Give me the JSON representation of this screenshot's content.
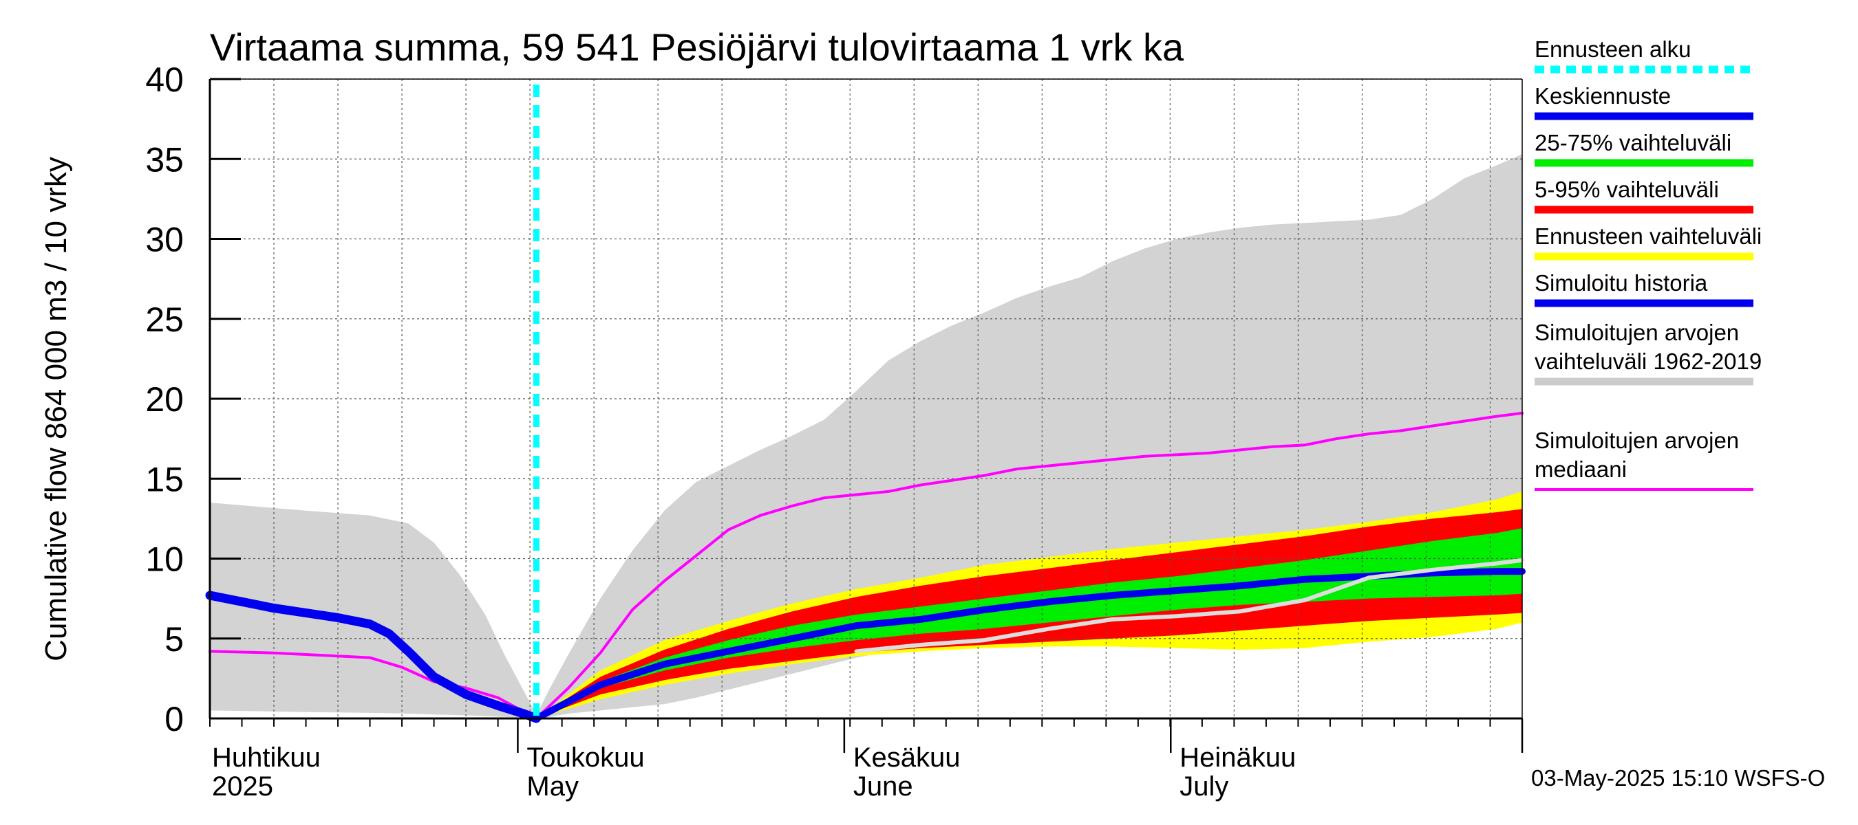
{
  "chart_data": {
    "type": "area",
    "title": "Virtaama summa, 59 541 Pesiöjärvi tulovirtaama 1 vrk ka",
    "ylabel": "Cumulative flow    864 000 m3 / 10 vrky",
    "ylim": [
      0,
      40
    ],
    "yticks": [
      0,
      5,
      10,
      15,
      20,
      25,
      30,
      35,
      40
    ],
    "xlim": [
      0,
      205
    ],
    "forecast_start_day": 51,
    "grid": true,
    "legend_position": "right",
    "month_labels": [
      {
        "day": 0,
        "fi": "Huhtikuu",
        "en": "2025"
      },
      {
        "day": 51,
        "fi": "Toukokuu",
        "en": "May"
      },
      {
        "day": 102,
        "fi": "Kesäkuu",
        "en": "June"
      },
      {
        "day": 153,
        "fi": "Heinäkuu",
        "en": "July"
      }
    ],
    "gray_band": {
      "name": "Simuloitujen arvojen vaihteluväli 1962-2019",
      "x": [
        0,
        15,
        25,
        31,
        35,
        39,
        43,
        46,
        48,
        50,
        51,
        53,
        56,
        61,
        66,
        71,
        76,
        81,
        86,
        91,
        96,
        101,
        106,
        111,
        116,
        121,
        126,
        131,
        136,
        141,
        146,
        151,
        156,
        161,
        166,
        171,
        176,
        181,
        186,
        191,
        196,
        201,
        205
      ],
      "upper": [
        13.5,
        13.0,
        12.7,
        12.2,
        11.0,
        9.0,
        6.5,
        4.0,
        2.5,
        1.0,
        0.2,
        1.8,
        4.0,
        7.5,
        10.5,
        13.0,
        14.8,
        15.8,
        16.8,
        17.7,
        18.7,
        20.5,
        22.4,
        23.6,
        24.6,
        25.4,
        26.3,
        27.0,
        27.6,
        28.6,
        29.4,
        30.0,
        30.4,
        30.7,
        30.9,
        31.0,
        31.1,
        31.2,
        31.5,
        32.5,
        33.8,
        34.6,
        35.3
      ],
      "lower": [
        0.5,
        0.4,
        0.35,
        0.3,
        0.25,
        0.2,
        0.15,
        0.1,
        0.08,
        0.05,
        0.0,
        0.1,
        0.3,
        0.5,
        0.7,
        0.9,
        1.3,
        1.8,
        2.3,
        2.8,
        3.3,
        3.8,
        4.2,
        4.5,
        4.7,
        4.9,
        5.0,
        5.2,
        5.4,
        5.6,
        5.7,
        5.8,
        5.9,
        6.0,
        6.2,
        6.6,
        7.0,
        7.5,
        8.0,
        8.3,
        8.6,
        9.0,
        9.3
      ]
    },
    "series": [
      {
        "name": "Ennusteen vaihteluväli",
        "kind": "band",
        "color": "#ffff00",
        "x": [
          51,
          61,
          71,
          81,
          91,
          101,
          111,
          121,
          131,
          141,
          151,
          161,
          171,
          181,
          191,
          201,
          205
        ],
        "upper": [
          0.0,
          3.0,
          4.9,
          6.1,
          7.2,
          8.1,
          8.8,
          9.6,
          10.1,
          10.6,
          11.0,
          11.4,
          11.8,
          12.3,
          12.9,
          13.7,
          14.2
        ],
        "lower": [
          0.0,
          1.2,
          2.1,
          2.8,
          3.4,
          3.9,
          4.2,
          4.4,
          4.5,
          4.5,
          4.4,
          4.3,
          4.4,
          4.8,
          5.1,
          5.6,
          6.0
        ]
      },
      {
        "name": "5-95% vaihteluväli",
        "kind": "band",
        "color": "#ff0000",
        "x": [
          51,
          61,
          71,
          81,
          91,
          101,
          111,
          121,
          131,
          141,
          151,
          161,
          171,
          181,
          191,
          201,
          205
        ],
        "upper": [
          0.0,
          2.6,
          4.3,
          5.6,
          6.7,
          7.6,
          8.3,
          8.9,
          9.4,
          9.9,
          10.4,
          10.9,
          11.4,
          12.0,
          12.5,
          12.9,
          13.1
        ],
        "lower": [
          0.0,
          1.5,
          2.4,
          3.1,
          3.6,
          4.1,
          4.4,
          4.6,
          4.8,
          5.0,
          5.2,
          5.5,
          5.8,
          6.1,
          6.3,
          6.5,
          6.6
        ]
      },
      {
        "name": "25-75% vaihteluväli",
        "kind": "band",
        "color": "#00ee00",
        "x": [
          51,
          61,
          71,
          81,
          91,
          101,
          111,
          121,
          131,
          141,
          151,
          161,
          171,
          181,
          191,
          201,
          205
        ],
        "upper": [
          0.0,
          2.3,
          3.8,
          4.9,
          5.8,
          6.5,
          7.0,
          7.5,
          8.0,
          8.5,
          8.9,
          9.4,
          9.9,
          10.5,
          11.1,
          11.6,
          11.9
        ],
        "lower": [
          0.0,
          1.9,
          3.0,
          3.8,
          4.4,
          4.9,
          5.3,
          5.6,
          6.0,
          6.4,
          6.8,
          7.1,
          7.3,
          7.5,
          7.6,
          7.7,
          7.8
        ]
      },
      {
        "name": "Simuloitujen arvojen mediaani",
        "kind": "line",
        "color": "#ff00ff",
        "x": [
          0,
          10,
          20,
          25,
          30,
          35,
          40,
          45,
          51,
          56,
          61,
          66,
          71,
          76,
          81,
          86,
          91,
          96,
          101,
          106,
          111,
          116,
          121,
          126,
          131,
          136,
          141,
          146,
          151,
          156,
          161,
          166,
          171,
          176,
          181,
          186,
          191,
          196,
          201,
          205
        ],
        "values": [
          4.2,
          4.1,
          3.9,
          3.8,
          3.2,
          2.3,
          1.9,
          1.3,
          0.0,
          1.9,
          4.1,
          6.8,
          8.6,
          10.2,
          11.8,
          12.7,
          13.3,
          13.8,
          14.0,
          14.2,
          14.6,
          14.9,
          15.2,
          15.6,
          15.8,
          16.0,
          16.2,
          16.4,
          16.5,
          16.6,
          16.8,
          17.0,
          17.1,
          17.5,
          17.8,
          18.0,
          18.3,
          18.6,
          18.9,
          19.1
        ]
      },
      {
        "name": "Simuloitu historia",
        "kind": "line",
        "color": "#0000ee",
        "x": [
          0,
          5,
          10,
          15,
          20,
          25,
          28,
          31,
          35,
          40,
          45,
          49,
          51
        ],
        "values": [
          7.7,
          7.3,
          6.9,
          6.6,
          6.3,
          5.9,
          5.3,
          4.2,
          2.6,
          1.5,
          0.8,
          0.3,
          0.0
        ]
      },
      {
        "name": "Keskiennuste",
        "kind": "line",
        "color": "#0000ee",
        "x": [
          51,
          61,
          71,
          81,
          91,
          101,
          111,
          121,
          131,
          141,
          151,
          161,
          171,
          181,
          191,
          201,
          205
        ],
        "values": [
          0.0,
          2.1,
          3.4,
          4.2,
          5.0,
          5.8,
          6.2,
          6.8,
          7.3,
          7.7,
          8.0,
          8.3,
          8.7,
          8.9,
          9.1,
          9.2,
          9.2
        ]
      },
      {
        "name": "observed-track",
        "kind": "line",
        "color": "#dddddd",
        "x": [
          101,
          111,
          121,
          131,
          141,
          151,
          161,
          171,
          181,
          191,
          201,
          205
        ],
        "values": [
          4.2,
          4.6,
          4.9,
          5.6,
          6.2,
          6.4,
          6.7,
          7.4,
          8.8,
          9.3,
          9.7,
          9.9
        ]
      }
    ],
    "legend": [
      {
        "label": "Ennusteen alku",
        "color": "#00ffff",
        "style": "dashed"
      },
      {
        "label": "Keskiennuste",
        "color": "#0000ee",
        "style": "solid"
      },
      {
        "label": "25-75% vaihteluväli",
        "color": "#00ee00",
        "style": "solid"
      },
      {
        "label": "5-95% vaihteluväli",
        "color": "#ff0000",
        "style": "solid"
      },
      {
        "label": "Ennusteen vaihteluväli",
        "color": "#ffff00",
        "style": "solid"
      },
      {
        "label": "Simuloitu historia",
        "color": "#0000ee",
        "style": "solid"
      },
      {
        "label": "Simuloitujen arvojen\nvaihteluväli 1962-2019",
        "color": "#cccccc",
        "style": "solid"
      },
      {
        "label": "Simuloitujen arvojen\nmediaani",
        "color": "#ff00ff",
        "style": "thin"
      }
    ],
    "timestamp": "03-May-2025 15:10 WSFS-O"
  }
}
